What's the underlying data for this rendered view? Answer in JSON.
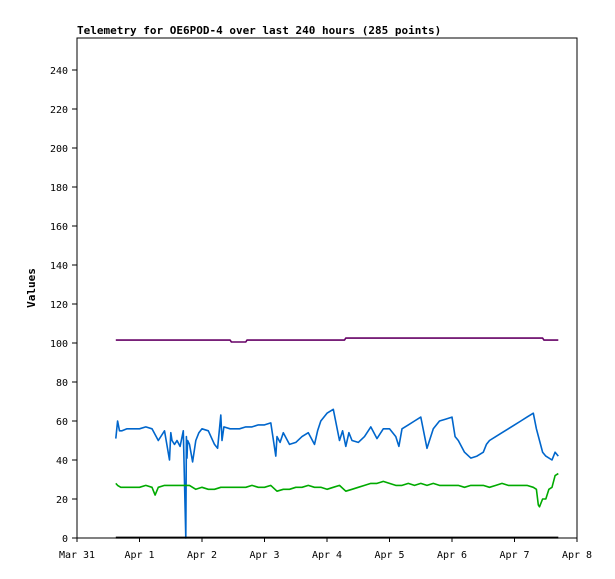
{
  "chart_data": {
    "type": "line",
    "title": "Telemetry for OE6POD-4 over last 240 hours (285 points)",
    "xlabel": "",
    "ylabel": "Values",
    "ylim": [
      0,
      255
    ],
    "yticks": [
      0,
      20,
      40,
      60,
      80,
      100,
      120,
      140,
      160,
      180,
      200,
      220,
      240
    ],
    "x_unit": "days since Mar 31",
    "xlim": [
      0,
      8
    ],
    "xticks": [
      {
        "x": 0,
        "label": "Mar 31"
      },
      {
        "x": 1,
        "label": "Apr 1"
      },
      {
        "x": 2,
        "label": "Apr 2"
      },
      {
        "x": 3,
        "label": "Apr 3"
      },
      {
        "x": 4,
        "label": "Apr 4"
      },
      {
        "x": 5,
        "label": "Apr 5"
      },
      {
        "x": 6,
        "label": "Apr 6"
      },
      {
        "x": 7,
        "label": "Apr 7"
      },
      {
        "x": 8,
        "label": "Apr 8"
      }
    ],
    "grid": false,
    "legend": "none",
    "series": [
      {
        "color": "#660066",
        "x": [
          0.62,
          2.45,
          2.47,
          2.7,
          2.72,
          4.28,
          4.3,
          7.45,
          7.47,
          7.7
        ],
        "y": [
          101.5,
          101.5,
          100.5,
          100.5,
          101.5,
          101.5,
          102.5,
          102.5,
          101.5,
          101.5
        ]
      },
      {
        "color": "#0066cc",
        "x": [
          0.62,
          0.65,
          0.68,
          0.72,
          0.8,
          0.9,
          1.0,
          1.1,
          1.2,
          1.3,
          1.4,
          1.48,
          1.5,
          1.52,
          1.56,
          1.6,
          1.65,
          1.7,
          1.74,
          1.75,
          1.76,
          1.77,
          1.8,
          1.85,
          1.9,
          1.95,
          2.0,
          2.1,
          2.2,
          2.25,
          2.3,
          2.32,
          2.35,
          2.45,
          2.5,
          2.6,
          2.7,
          2.8,
          2.9,
          3.0,
          3.1,
          3.18,
          3.2,
          3.25,
          3.3,
          3.4,
          3.5,
          3.6,
          3.7,
          3.8,
          3.85,
          3.9,
          4.0,
          4.1,
          4.2,
          4.25,
          4.3,
          4.35,
          4.4,
          4.5,
          4.6,
          4.7,
          4.8,
          4.9,
          5.0,
          5.1,
          5.15,
          5.2,
          5.3,
          5.4,
          5.5,
          5.6,
          5.7,
          5.8,
          5.9,
          6.0,
          6.05,
          6.1,
          6.2,
          6.3,
          6.4,
          6.5,
          6.55,
          6.6,
          6.7,
          6.8,
          6.9,
          7.0,
          7.1,
          7.2,
          7.3,
          7.35,
          7.4,
          7.45,
          7.5,
          7.6,
          7.65,
          7.7
        ],
        "y": [
          51,
          60,
          55,
          55,
          56,
          56,
          56,
          57,
          56,
          50,
          55,
          40,
          54,
          50,
          48,
          50,
          47,
          55,
          0,
          52,
          41,
          50,
          48,
          39,
          50,
          54,
          56,
          55,
          48,
          46,
          63,
          50,
          57,
          56,
          56,
          56,
          57,
          57,
          58,
          58,
          59,
          42,
          52,
          49,
          54,
          48,
          49,
          52,
          54,
          48,
          55,
          60,
          64,
          66,
          50,
          55,
          47,
          54,
          50,
          49,
          52,
          57,
          51,
          56,
          56,
          52,
          47,
          56,
          58,
          60,
          62,
          46,
          56,
          60,
          61,
          62,
          52,
          50,
          44,
          41,
          42,
          44,
          48,
          50,
          52,
          54,
          56,
          58,
          60,
          62,
          64,
          56,
          50,
          44,
          42,
          40,
          44,
          42
        ]
      },
      {
        "color": "#00aa00",
        "x": [
          0.62,
          0.65,
          0.7,
          0.8,
          0.9,
          1.0,
          1.1,
          1.2,
          1.25,
          1.3,
          1.4,
          1.5,
          1.6,
          1.7,
          1.8,
          1.9,
          2.0,
          2.1,
          2.2,
          2.3,
          2.4,
          2.5,
          2.6,
          2.7,
          2.8,
          2.9,
          3.0,
          3.1,
          3.2,
          3.3,
          3.4,
          3.5,
          3.6,
          3.7,
          3.8,
          3.9,
          4.0,
          4.1,
          4.2,
          4.3,
          4.4,
          4.5,
          4.6,
          4.7,
          4.8,
          4.9,
          5.0,
          5.1,
          5.2,
          5.3,
          5.4,
          5.5,
          5.6,
          5.7,
          5.8,
          5.9,
          6.0,
          6.1,
          6.2,
          6.3,
          6.4,
          6.5,
          6.6,
          6.7,
          6.8,
          6.9,
          7.0,
          7.1,
          7.2,
          7.3,
          7.35,
          7.38,
          7.4,
          7.45,
          7.5,
          7.55,
          7.6,
          7.65,
          7.7
        ],
        "y": [
          28,
          27,
          26,
          26,
          26,
          26,
          27,
          26,
          22,
          26,
          27,
          27,
          27,
          27,
          27,
          25,
          26,
          25,
          25,
          26,
          26,
          26,
          26,
          26,
          27,
          26,
          26,
          27,
          24,
          25,
          25,
          26,
          26,
          27,
          26,
          26,
          25,
          26,
          27,
          24,
          25,
          26,
          27,
          28,
          28,
          29,
          28,
          27,
          27,
          28,
          27,
          28,
          27,
          28,
          27,
          27,
          27,
          27,
          26,
          27,
          27,
          27,
          26,
          27,
          28,
          27,
          27,
          27,
          27,
          26,
          25,
          17,
          16,
          20,
          20,
          25,
          26,
          32,
          33
        ]
      },
      {
        "color": "#000000",
        "x": [
          0.62,
          7.7
        ],
        "y": [
          0.2,
          0.2
        ]
      }
    ]
  }
}
